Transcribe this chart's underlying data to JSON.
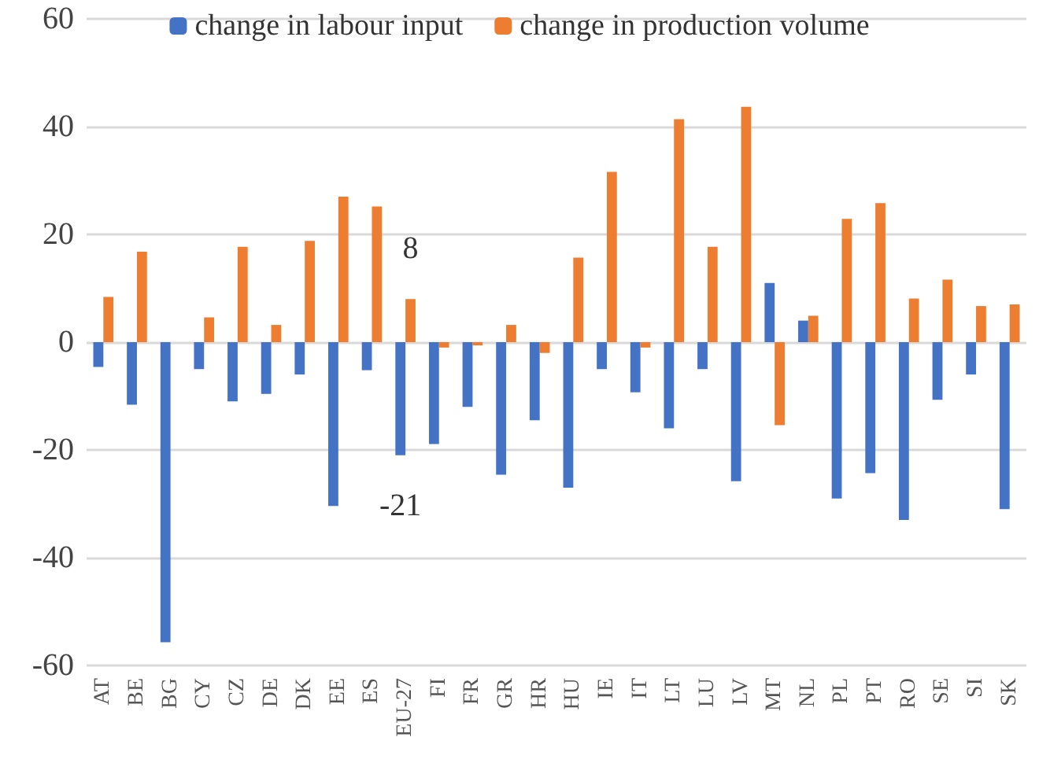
{
  "chart_data": {
    "type": "bar",
    "categories": [
      "AT",
      "BE",
      "BG",
      "CY",
      "CZ",
      "DE",
      "DK",
      "EE",
      "ES",
      "EU-27",
      "FI",
      "FR",
      "GR",
      "HR",
      "HU",
      "IE",
      "IT",
      "LT",
      "LU",
      "LV",
      "MT",
      "NL",
      "PL",
      "PT",
      "RO",
      "SE",
      "SI",
      "SK"
    ],
    "series": [
      {
        "name": "change in labour input",
        "color": "#4472c4",
        "values": [
          -4.6,
          -11.6,
          -55.7,
          -5,
          -11,
          -9.6,
          -6,
          -30.4,
          -5.2,
          -21,
          -18.9,
          -12,
          -24.6,
          -14.5,
          -27,
          -5,
          -9.3,
          -16,
          -5,
          -25.8,
          11,
          4,
          -29,
          -24.3,
          -33,
          -10.7,
          -6,
          -31
        ],
        "value_labels": [
          null,
          null,
          null,
          null,
          null,
          null,
          null,
          null,
          null,
          "-21",
          null,
          null,
          null,
          null,
          null,
          null,
          null,
          null,
          null,
          null,
          null,
          null,
          null,
          null,
          null,
          null,
          null,
          null
        ]
      },
      {
        "name": "change in production volume",
        "color": "#ed7d31",
        "values": [
          8.4,
          16.8,
          null,
          4.6,
          17.7,
          3.2,
          18.8,
          27,
          25.2,
          8,
          -1,
          -0.6,
          3.2,
          -2,
          15.7,
          31.6,
          -1,
          41.4,
          17.7,
          43.7,
          -15.4,
          4.9,
          22.9,
          25.8,
          8.1,
          11.6,
          6.7,
          7
        ],
        "value_labels": [
          null,
          null,
          null,
          null,
          null,
          null,
          null,
          null,
          null,
          "8",
          null,
          null,
          null,
          null,
          null,
          null,
          null,
          null,
          null,
          null,
          null,
          null,
          null,
          null,
          null,
          null,
          null,
          null
        ]
      }
    ],
    "ylim": [
      -60,
      60
    ],
    "yticks": [
      -60,
      -40,
      -20,
      0,
      20,
      40,
      60
    ],
    "grid": "y",
    "legend": "top"
  }
}
